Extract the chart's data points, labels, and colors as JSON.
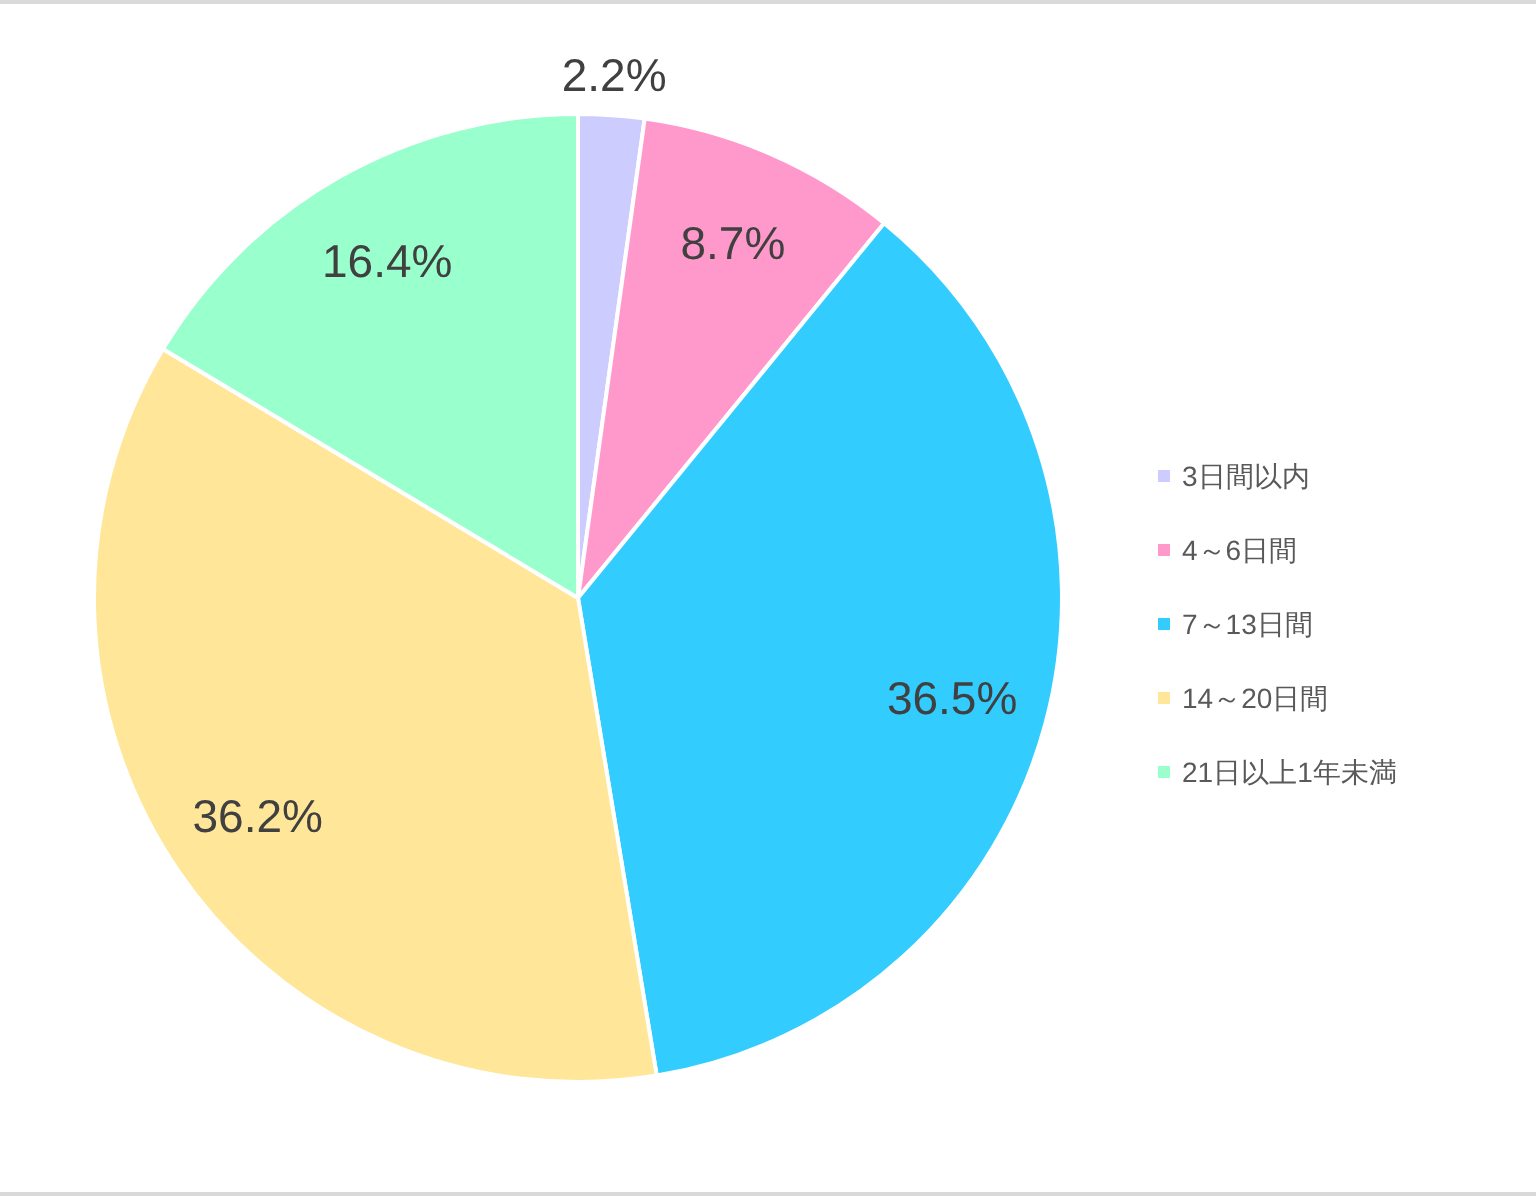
{
  "chart_data": {
    "type": "pie",
    "categories": [
      "3日間以内",
      "4～6日間",
      "7～13日間",
      "14～20日間",
      "21日以上1年未満"
    ],
    "values": [
      2.2,
      8.7,
      36.5,
      36.2,
      16.4
    ],
    "value_labels": [
      "2.2%",
      "8.7%",
      "36.5%",
      "36.2%",
      "16.4%"
    ],
    "colors": [
      "#ccccff",
      "#ff99cc",
      "#33ccff",
      "#ffe699",
      "#99ffcc"
    ],
    "legend": "right"
  }
}
